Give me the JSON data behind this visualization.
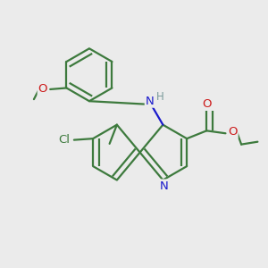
{
  "bg_color": "#ebebeb",
  "bond_color": "#3d7a3d",
  "n_color": "#1a1acc",
  "o_color": "#cc1a1a",
  "cl_color": "#3d7a3d",
  "h_color": "#7a9a9a",
  "line_width": 1.6,
  "figsize": [
    3.0,
    3.0
  ],
  "dpi": 100,
  "xlim": [
    0,
    10
  ],
  "ylim": [
    0,
    10
  ]
}
